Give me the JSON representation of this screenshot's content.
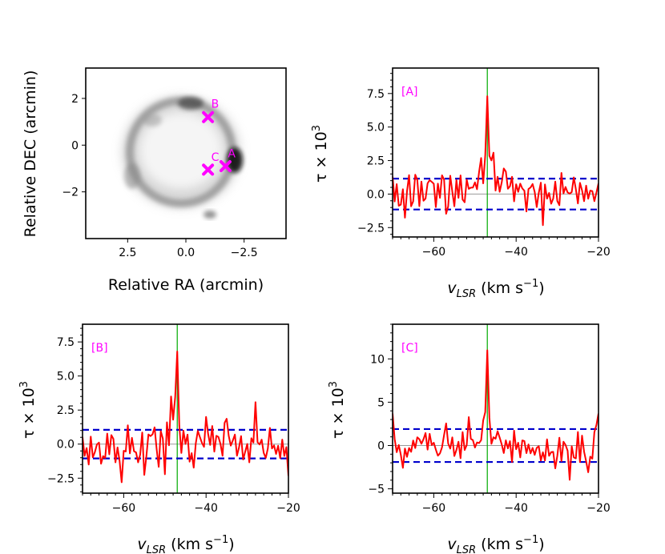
{
  "colors": {
    "series": "#ff0000",
    "threshold": "#0000cc",
    "marker": "#00aa00",
    "label": "#ff00ff",
    "zero": "#999999"
  },
  "chart_data": [
    {
      "type": "image",
      "id": "map",
      "xlabel": "Relative RA (arcmin)",
      "ylabel": "Relative DEC (arcmin)",
      "xlim": [
        4.3,
        -4.3
      ],
      "ylim": [
        -4.0,
        3.3
      ],
      "xticks": [
        2.5,
        0.0,
        -2.5
      ],
      "xtick_labels": [
        "2.5",
        "0.0",
        "−2.5"
      ],
      "yticks": [
        2,
        0,
        -2
      ],
      "ytick_labels": [
        "2",
        "0",
        "−2"
      ],
      "points": [
        {
          "label": "B",
          "x": -0.95,
          "y": 1.2
        },
        {
          "label": "C",
          "x": -0.95,
          "y": -1.05
        },
        {
          "label": "A",
          "x": -1.7,
          "y": -0.9
        }
      ]
    },
    {
      "type": "line",
      "id": "A",
      "panel_label": "[A]",
      "xlabel_var": "v",
      "xlabel_sub": "LSR",
      "xlabel_unit": " (km s",
      "xlabel_exp": "−1",
      "xlabel_close": ")",
      "ylabel_main": "τ × 10",
      "ylabel_exp": "3",
      "xlim": [
        -70,
        -20
      ],
      "ylim": [
        -3.2,
        9.4
      ],
      "xticks": [
        -60,
        -40,
        -20
      ],
      "xtick_labels": [
        "−60",
        "−40",
        "−20"
      ],
      "yticks": [
        -2.5,
        0.0,
        2.5,
        5.0,
        7.5
      ],
      "ytick_labels": [
        "−2.5",
        "0.0",
        "2.5",
        "5.0",
        "7.5"
      ],
      "threshold": 1.15,
      "vline": -47.0,
      "x": [
        -70.0,
        -69.5,
        -69.0,
        -68.5,
        -68.0,
        -67.5,
        -67.0,
        -66.5,
        -66.0,
        -65.5,
        -65.0,
        -64.5,
        -64.0,
        -63.5,
        -63.0,
        -62.5,
        -62.0,
        -61.5,
        -61.0,
        -60.5,
        -60.0,
        -59.5,
        -59.0,
        -58.5,
        -58.0,
        -57.5,
        -57.0,
        -56.5,
        -56.0,
        -55.5,
        -55.0,
        -54.5,
        -54.0,
        -53.5,
        -53.0,
        -52.5,
        -52.0,
        -51.5,
        -51.0,
        -50.5,
        -50.0,
        -49.5,
        -49.0,
        -48.5,
        -48.0,
        -47.5,
        -47.0,
        -46.5,
        -46.0,
        -45.5,
        -45.0,
        -44.5,
        -44.0,
        -43.5,
        -43.0,
        -42.5,
        -42.0,
        -41.5,
        -41.0,
        -40.5,
        -40.0,
        -39.5,
        -39.0,
        -38.5,
        -38.0,
        -37.5,
        -37.0,
        -36.5,
        -36.0,
        -35.5,
        -35.0,
        -34.5,
        -34.0,
        -33.5,
        -33.0,
        -32.5,
        -32.0,
        -31.5,
        -31.0,
        -30.5,
        -30.0,
        -29.5,
        -29.0,
        -28.5,
        -28.0,
        -27.5,
        -27.0,
        -26.5,
        -26.0,
        -25.5,
        -25.0,
        -24.5,
        -24.0,
        -23.5,
        -23.0,
        -22.5,
        -22.0,
        -21.5,
        -21.0,
        -20.5,
        -20.0
      ],
      "y": [
        1.31,
        -0.55,
        0.74,
        -0.87,
        -0.79,
        0.36,
        -1.76,
        0.2,
        1.41,
        -0.91,
        -0.54,
        1.44,
        1.06,
        -0.9,
        0.93,
        -0.5,
        -0.34,
        0.8,
        1.04,
        0.91,
        0.77,
        -0.97,
        0.78,
        -0.28,
        1.4,
        1.08,
        -1.47,
        -0.92,
        1.37,
        0.18,
        -0.91,
        1.05,
        -0.28,
        1.39,
        -0.41,
        -0.61,
        1.08,
        0.39,
        0.48,
        0.49,
        0.87,
        0.36,
        1.64,
        2.69,
        0.8,
        2.9,
        7.3,
        2.85,
        2.51,
        3.09,
        0.26,
        1.29,
        0.17,
        0.87,
        1.91,
        1.68,
        0.4,
        0.58,
        1.29,
        -0.54,
        0.73,
        0.17,
        0.78,
        0.42,
        0.25,
        -1.3,
        0.38,
        0.49,
        0.75,
        0.17,
        -0.97,
        0.1,
        0.85,
        -2.32,
        0.72,
        -0.34,
        0.08,
        -0.72,
        -0.34,
        0.93,
        -0.52,
        -0.83,
        1.58,
        0.05,
        0.53,
        0.12,
        0.03,
        0.15,
        1.24,
        0.37,
        -0.7,
        0.84,
        0.28,
        -0.53,
        0.63,
        -0.35,
        0.26,
        0.22,
        -0.53,
        0.11,
        0.8
      ]
    },
    {
      "type": "line",
      "id": "B",
      "panel_label": "[B]",
      "xlabel_var": "v",
      "xlabel_sub": "LSR",
      "xlabel_unit": " (km s",
      "xlabel_exp": "−1",
      "xlabel_close": ")",
      "ylabel_main": "τ × 10",
      "ylabel_exp": "3",
      "xlim": [
        -70,
        -20
      ],
      "ylim": [
        -3.6,
        8.8
      ],
      "xticks": [
        -60,
        -40,
        -20
      ],
      "xtick_labels": [
        "−60",
        "−40",
        "−20"
      ],
      "yticks": [
        -2.5,
        0.0,
        2.5,
        5.0,
        7.5
      ],
      "ytick_labels": [
        "−2.5",
        "0.0",
        "2.5",
        "5.0",
        "7.5"
      ],
      "threshold": 1.05,
      "vline": -47.0,
      "x": [
        -70.0,
        -69.5,
        -69.0,
        -68.5,
        -68.0,
        -67.5,
        -67.0,
        -66.5,
        -66.0,
        -65.5,
        -65.0,
        -64.5,
        -64.0,
        -63.5,
        -63.0,
        -62.5,
        -62.0,
        -61.5,
        -61.0,
        -60.5,
        -60.0,
        -59.5,
        -59.0,
        -58.5,
        -58.0,
        -57.5,
        -57.0,
        -56.5,
        -56.0,
        -55.5,
        -55.0,
        -54.5,
        -54.0,
        -53.5,
        -53.0,
        -52.5,
        -52.0,
        -51.5,
        -51.0,
        -50.5,
        -50.0,
        -49.5,
        -49.0,
        -48.5,
        -48.0,
        -47.5,
        -47.0,
        -46.5,
        -46.0,
        -45.5,
        -45.0,
        -44.5,
        -44.0,
        -43.5,
        -43.0,
        -42.5,
        -42.0,
        -41.5,
        -41.0,
        -40.5,
        -40.0,
        -39.5,
        -39.0,
        -38.5,
        -38.0,
        -37.5,
        -37.0,
        -36.5,
        -36.0,
        -35.5,
        -35.0,
        -34.5,
        -34.0,
        -33.5,
        -33.0,
        -32.5,
        -32.0,
        -31.5,
        -31.0,
        -30.5,
        -30.0,
        -29.5,
        -29.0,
        -28.5,
        -28.0,
        -27.5,
        -27.0,
        -26.5,
        -26.0,
        -25.5,
        -25.0,
        -24.5,
        -24.0,
        -23.5,
        -23.0,
        -22.5,
        -22.0,
        -21.5,
        -21.0,
        -20.5,
        -20.0
      ],
      "y": [
        0.52,
        -0.86,
        -0.29,
        -1.5,
        0.55,
        -0.97,
        -0.59,
        -0.02,
        0.11,
        -1.44,
        -0.88,
        -1.02,
        0.77,
        -0.75,
        0.66,
        0.38,
        -1.34,
        -0.24,
        -1.23,
        -2.8,
        -0.49,
        -0.54,
        1.38,
        -0.68,
        0.46,
        -0.52,
        -0.61,
        -1.34,
        -0.77,
        0.85,
        -2.26,
        -0.91,
        0.71,
        0.59,
        0.72,
        1.23,
        -0.37,
        -1.67,
        0.95,
        0.41,
        -2.21,
        1.6,
        -0.09,
        3.5,
        1.79,
        3.45,
        6.8,
        1.36,
        -0.65,
        0.99,
        0.01,
        0.7,
        -1.29,
        -0.66,
        -1.73,
        0.05,
        0.97,
        0.52,
        0.09,
        -0.2,
        2.0,
        0.75,
        -0.06,
        1.33,
        -0.55,
        0.61,
        0.53,
        0.01,
        -0.85,
        1.56,
        1.86,
        0.61,
        -0.11,
        0.27,
        0.7,
        -0.85,
        -0.24,
        0.59,
        -1.13,
        -0.56,
        0.01,
        -1.34,
        0.43,
        0.11,
        3.08,
        0.14,
        -0.03,
        0.33,
        -0.65,
        -1.01,
        -0.32,
        1.19,
        -0.32,
        -0.09,
        -0.72,
        -0.12,
        -1.03,
        0.33,
        -0.87,
        -0.22,
        -2.34
      ]
    },
    {
      "type": "line",
      "id": "C",
      "panel_label": "[C]",
      "xlabel_var": "v",
      "xlabel_sub": "LSR",
      "xlabel_unit": " (km s",
      "xlabel_exp": "−1",
      "xlabel_close": ")",
      "ylabel_main": "τ × 10",
      "ylabel_exp": "3",
      "xlim": [
        -70,
        -20
      ],
      "ylim": [
        -5.5,
        14.0
      ],
      "xticks": [
        -60,
        -40,
        -20
      ],
      "xtick_labels": [
        "−60",
        "−40",
        "−20"
      ],
      "yticks": [
        -5,
        0,
        5,
        10
      ],
      "ytick_labels": [
        "−5",
        "0",
        "5",
        "10"
      ],
      "threshold": 1.9,
      "vline": -47.0,
      "x": [
        -70.0,
        -69.5,
        -69.0,
        -68.5,
        -68.0,
        -67.5,
        -67.0,
        -66.5,
        -66.0,
        -65.5,
        -65.0,
        -64.5,
        -64.0,
        -63.5,
        -63.0,
        -62.5,
        -62.0,
        -61.5,
        -61.0,
        -60.5,
        -60.0,
        -59.5,
        -59.0,
        -58.5,
        -58.0,
        -57.5,
        -57.0,
        -56.5,
        -56.0,
        -55.5,
        -55.0,
        -54.5,
        -54.0,
        -53.5,
        -53.0,
        -52.5,
        -52.0,
        -51.5,
        -51.0,
        -50.5,
        -50.0,
        -49.5,
        -49.0,
        -48.5,
        -48.0,
        -47.5,
        -47.0,
        -46.5,
        -46.0,
        -45.5,
        -45.0,
        -44.5,
        -44.0,
        -43.5,
        -43.0,
        -42.5,
        -42.0,
        -41.5,
        -41.0,
        -40.5,
        -40.0,
        -39.5,
        -39.0,
        -38.5,
        -38.0,
        -37.5,
        -37.0,
        -36.5,
        -36.0,
        -35.5,
        -35.0,
        -34.5,
        -34.0,
        -33.5,
        -33.0,
        -32.5,
        -32.0,
        -31.5,
        -31.0,
        -30.5,
        -30.0,
        -29.5,
        -29.0,
        -28.5,
        -28.0,
        -27.5,
        -27.0,
        -26.5,
        -26.0,
        -25.5,
        -25.0,
        -24.5,
        -24.0,
        -23.5,
        -23.0,
        -22.5,
        -22.0,
        -21.5,
        -21.0,
        -20.5,
        -20.0
      ],
      "y": [
        3.7,
        0.76,
        -0.77,
        0.06,
        -1.07,
        -2.58,
        -0.35,
        -1.31,
        -0.29,
        -0.73,
        0.58,
        -0.29,
        0.95,
        0.73,
        0.2,
        0.72,
        1.44,
        -0.48,
        1.35,
        0.05,
        0.32,
        -0.47,
        -1.17,
        -0.91,
        -0.21,
        1.21,
        2.55,
        0.23,
        -0.36,
        0.94,
        -1.21,
        -0.52,
        0.44,
        -1.47,
        1.55,
        -0.52,
        0.06,
        3.28,
        0.77,
        0.62,
        -0.23,
        0.35,
        0.28,
        0.62,
        2.9,
        3.86,
        11.0,
        3.25,
        0.2,
        0.95,
        0.78,
        1.65,
        0.92,
        0.13,
        -0.87,
        0.6,
        -0.33,
        0.5,
        -1.9,
        1.72,
        -0.43,
        0.32,
        -1.38,
        0.59,
        0.51,
        -0.88,
        0.13,
        -0.91,
        -0.28,
        -1.08,
        -0.27,
        -0.08,
        -1.73,
        -0.78,
        -1.72,
        0.72,
        -1.19,
        -0.76,
        -0.73,
        -2.64,
        -1.18,
        0.9,
        -1.79,
        0.44,
        0.06,
        -0.6,
        -3.96,
        -0.09,
        -1.37,
        -1.49,
        1.56,
        -1.91,
        1.14,
        -0.71,
        -1.83,
        -3.09,
        -1.28,
        -1.52,
        1.55,
        2.37,
        3.7
      ]
    }
  ]
}
